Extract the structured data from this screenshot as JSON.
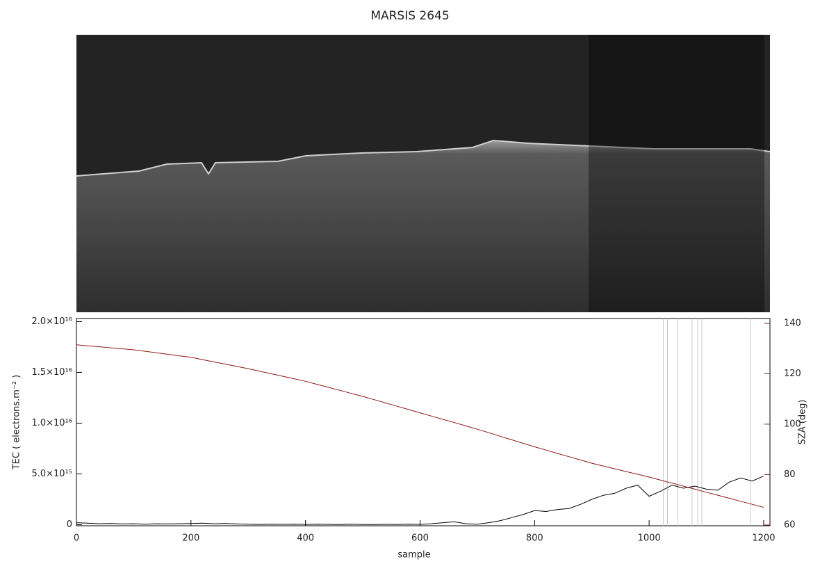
{
  "chart_data": {
    "type": "line",
    "title": "MARSIS 2645",
    "x_label": "sample",
    "y_label": "TEC ( electrons.m⁻² )",
    "y2_label": "SZA (deg)",
    "xlim": [
      0,
      1211
    ],
    "xticks": [
      0,
      200,
      400,
      600,
      800,
      1000,
      1200
    ],
    "ylim": [
      -100000000000000,
      20300000000000000
    ],
    "yticks": [
      0,
      {
        "value": 5000000000000000,
        "label": "5.0×10¹⁵"
      },
      {
        "value": 10000000000000000,
        "label": "1.0×10¹⁶"
      },
      {
        "value": 15000000000000000,
        "label": "1.5×10¹⁶"
      },
      {
        "value": 20000000000000000,
        "label": "2.0×10¹⁶"
      }
    ],
    "y2lim": [
      59.7,
      141.9
    ],
    "y2ticks": [
      60,
      80,
      100,
      120,
      140
    ],
    "y2_color": "#8b1a1a",
    "vlines": [
      1025,
      1032,
      1050,
      1075,
      1085,
      1092,
      1177
    ],
    "vline_color": "#c8c8c8",
    "x": [
      0,
      20,
      40,
      60,
      80,
      100,
      120,
      140,
      160,
      180,
      200,
      220,
      240,
      260,
      280,
      300,
      320,
      340,
      360,
      380,
      400,
      420,
      440,
      460,
      480,
      500,
      520,
      540,
      560,
      580,
      600,
      620,
      640,
      660,
      680,
      700,
      720,
      740,
      760,
      780,
      800,
      820,
      840,
      860,
      880,
      900,
      920,
      940,
      960,
      980,
      1000,
      1020,
      1040,
      1060,
      1080,
      1100,
      1120,
      1140,
      1160,
      1180,
      1200
    ],
    "series": [
      {
        "name": "TEC",
        "color": "#000000",
        "values": [
          200000000000000.0,
          150000000000000.0,
          100000000000000.0,
          120000000000000.0,
          80000000000000.0,
          100000000000000.0,
          50000000000000.0,
          100000000000000.0,
          80000000000000.0,
          100000000000000.0,
          120000000000000.0,
          150000000000000.0,
          100000000000000.0,
          120000000000000.0,
          80000000000000.0,
          50000000000000.0,
          30000000000000.0,
          50000000000000.0,
          40000000000000.0,
          60000000000000.0,
          30000000000000.0,
          50000000000000.0,
          40000000000000.0,
          20000000000000.0,
          50000000000000.0,
          30000000000000.0,
          20000000000000.0,
          40000000000000.0,
          30000000000000.0,
          50000000000000.0,
          40000000000000.0,
          100000000000000.0,
          200000000000000.0,
          300000000000000.0,
          100000000000000.0,
          50000000000000.0,
          200000000000000.0,
          400000000000000.0,
          700000000000000.0,
          1000000000000000.0,
          1400000000000000.0,
          1300000000000000.0,
          1500000000000000.0,
          1600000000000000.0,
          2000000000000000.0,
          2500000000000000.0,
          2900000000000000.0,
          3100000000000000.0,
          3600000000000000.0,
          3900000000000000.0,
          2800000000000000.0,
          3300000000000000.0,
          3900000000000000.0,
          3600000000000000.0,
          3800000000000000.0,
          3500000000000000.0,
          3400000000000000.0,
          4200000000000000.0,
          4600000000000000.0,
          4300000000000000.0,
          4800000000000000.0
        ]
      },
      {
        "name": "SZA",
        "color": "#8b1a1a",
        "axis": "y2",
        "values": [
          131.5,
          131.1,
          130.7,
          130.3,
          129.9,
          129.5,
          128.9,
          128.3,
          127.7,
          127.1,
          126.5,
          125.6,
          124.7,
          123.8,
          122.9,
          122,
          121,
          120,
          119,
          118,
          117,
          115.8,
          114.6,
          113.4,
          112.2,
          111,
          109.7,
          108.4,
          107.1,
          105.8,
          104.5,
          103.2,
          101.9,
          100.6,
          99.3,
          98,
          96.6,
          95.2,
          93.8,
          92.4,
          91,
          89.7,
          88.4,
          87.1,
          85.8,
          84.5,
          83.4,
          82.3,
          81.2,
          80.1,
          79,
          77.8,
          76.6,
          75.4,
          74.2,
          73,
          71.8,
          70.6,
          69.4,
          68.2,
          67
        ]
      }
    ]
  }
}
